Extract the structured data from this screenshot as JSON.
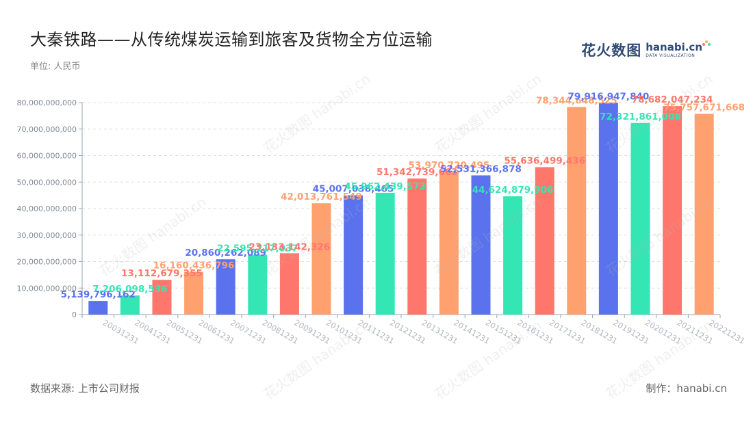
{
  "header": {
    "title": "大秦铁路——从传统煤炭运输到旅客及货物全方位运输",
    "unit_label": "单位: 人民币"
  },
  "footer": {
    "source": "数据来源: 上市公司财报",
    "credit": "制作：hanabi.cn"
  },
  "brand": {
    "cn": "花火数图",
    "en": "hanabi.cn",
    "sub": "DATA VISUALIZATION",
    "watermark_cn": "花火数图",
    "watermark_en": "hanabi.cn"
  },
  "colors": {
    "blue": "#5a72ee",
    "green": "#33e6b3",
    "red": "#ff776c",
    "orange": "#ffa06f",
    "grid": "#d9dde5",
    "axis": "#9aa3b2",
    "tick_text": "#7f8794",
    "xtick_text": "#b0b6c0"
  },
  "chart_data": {
    "type": "bar",
    "title": "大秦铁路——从传统煤炭运输到旅客及货物全方位运输",
    "ylabel": "",
    "xlabel": "",
    "ylim": [
      0,
      80000000000
    ],
    "yticks": [
      0,
      10000000000,
      20000000000,
      30000000000,
      40000000000,
      50000000000,
      60000000000,
      70000000000,
      80000000000
    ],
    "ytick_labels": [
      "0",
      "10,000,000,000",
      "20,000,000,000",
      "30,000,000,000",
      "40,000,000,000",
      "50,000,000,000",
      "60,000,000,000",
      "70,000,000,000",
      "80,000,000,000"
    ],
    "grid": true,
    "categories": [
      "20031231",
      "20041231",
      "20051231",
      "20061231",
      "20071231",
      "20081231",
      "20091231",
      "20101231",
      "20111231",
      "20121231",
      "20131231",
      "20141231",
      "20151231",
      "20161231",
      "20171231",
      "20181231",
      "20191231",
      "20201231",
      "20211231",
      "20221231"
    ],
    "values": [
      5139796162,
      7206098536,
      13112679355,
      16160436796,
      20860262089,
      22595217037,
      23133142326,
      42013761549,
      45007038465,
      45962439573,
      51342739663,
      53970720495,
      52531366878,
      44624879906,
      55636499436,
      78344648525,
      79916947840,
      72321861008,
      78682047234,
      75757671668
    ],
    "value_labels": [
      "5,139,796,162",
      "7,206,098,536",
      "13,112,679,355",
      "16,160,436,796",
      "20,860,262,089",
      "22,595,217,037",
      "23,133,142,326",
      "42,013,761,549",
      "45,007,038,465",
      "45,962,439,573",
      "51,342,739,663",
      "53,970,720,495",
      "52,531,366,878",
      "44,624,879,906",
      "55,636,499,436",
      "78,344,648,525",
      "79,916,947,840",
      "72,321,861,008",
      "78,682,047,234",
      "75,757,671,668"
    ],
    "bar_colors": [
      "#5a72ee",
      "#33e6b3",
      "#ff776c",
      "#ffa06f",
      "#5a72ee",
      "#33e6b3",
      "#ff776c",
      "#ffa06f",
      "#5a72ee",
      "#33e6b3",
      "#ff776c",
      "#ffa06f",
      "#5a72ee",
      "#33e6b3",
      "#ff776c",
      "#ffa06f",
      "#5a72ee",
      "#33e6b3",
      "#ff776c",
      "#ffa06f"
    ]
  }
}
